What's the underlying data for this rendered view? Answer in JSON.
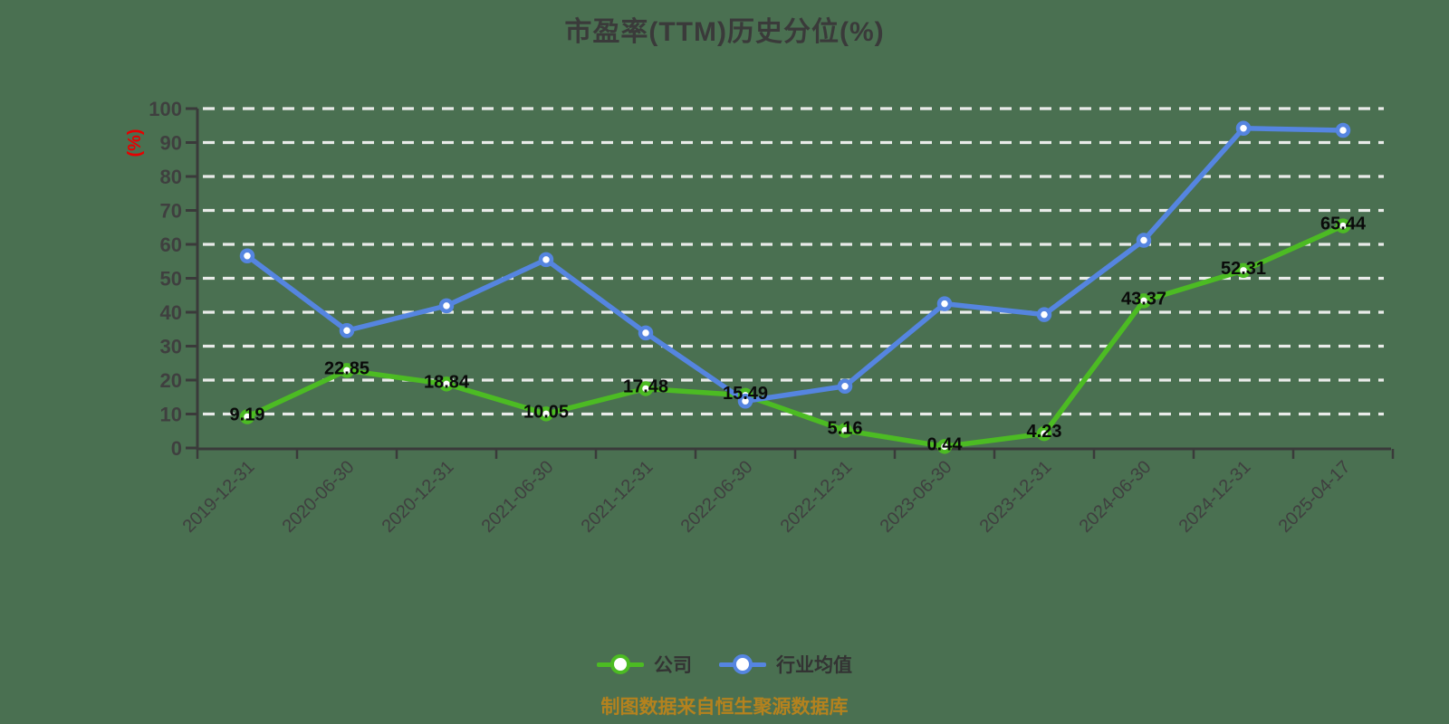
{
  "page": {
    "background": "#4A7051"
  },
  "title": {
    "text": "市盈率(TTM)历史分位(%)",
    "color": "#3A3A3A"
  },
  "source_note": {
    "text": "制图数据来自恒生聚源数据库",
    "color": "#B4821E"
  },
  "legend": {
    "items": [
      {
        "label": "公司",
        "color": "#4CBB23"
      },
      {
        "label": "行业均值",
        "color": "#5585E0"
      }
    ],
    "text_color": "#333333"
  },
  "chart_data": {
    "type": "line",
    "title": "市盈率(TTM)历史分位(%)",
    "xlabel": "",
    "ylabel": "(%)",
    "ylabel_color": "#E60000",
    "ylim": [
      0,
      100
    ],
    "y_ticks": [
      0,
      10,
      20,
      30,
      40,
      50,
      60,
      70,
      80,
      90,
      100
    ],
    "grid": "horizontal-dashed",
    "grid_color": "#F2F2F2",
    "axis_color": "#3A3A3A",
    "tick_label_color": "#3F3F3F",
    "data_label_color": "#0A0A0A",
    "legend_position": "bottom",
    "categories": [
      "2019-12-31",
      "2020-06-30",
      "2020-12-31",
      "2021-06-30",
      "2021-12-31",
      "2022-06-30",
      "2022-12-31",
      "2023-06-30",
      "2023-12-31",
      "2024-06-30",
      "2024-12-31",
      "2025-04-17"
    ],
    "series": [
      {
        "name": "公司",
        "color": "#4CBB23",
        "values": [
          9.19,
          22.85,
          18.84,
          10.05,
          17.48,
          15.49,
          5.16,
          0.44,
          4.23,
          43.37,
          52.31,
          65.44
        ],
        "point_labels": [
          "9.19",
          "22.85",
          "18.84",
          "10.05",
          "17.48",
          "15.49",
          "5.16",
          "0.44",
          "4.23",
          "43.37",
          "52.31",
          "65.44"
        ]
      },
      {
        "name": "行业均值",
        "color": "#5585E0",
        "values": [
          56.6,
          34.6,
          41.9,
          55.5,
          33.9,
          13.8,
          18.2,
          42.5,
          39.3,
          61.2,
          94.2,
          93.6
        ],
        "point_labels": null
      }
    ]
  }
}
